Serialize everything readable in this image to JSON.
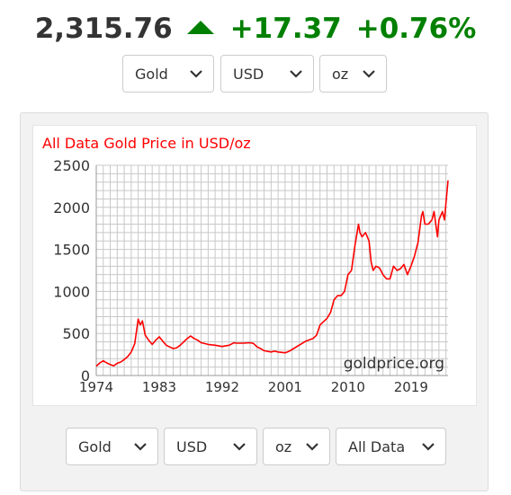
{
  "ticker": {
    "price": "2,315.76",
    "change": "+17.37",
    "change_pct": "+0.76%",
    "direction_icon": "triangle-up-icon",
    "up_color": "#008000"
  },
  "top_selects": {
    "metal": "Gold",
    "currency": "USD",
    "unit": "oz"
  },
  "bottom_selects": {
    "metal": "Gold",
    "currency": "USD",
    "unit": "oz",
    "range": "All Data"
  },
  "chart_data": {
    "type": "line",
    "title": "All Data Gold Price in USD/oz",
    "watermark": "goldprice.org",
    "xlabel": "",
    "ylabel": "",
    "xlim": [
      1974,
      2024.3
    ],
    "ylim": [
      0,
      2500
    ],
    "xticks": [
      1974,
      1983,
      1992,
      2001,
      2010,
      2019
    ],
    "xtick_labels": [
      "1974",
      "1983",
      "1992",
      "2001",
      "2010",
      "2019"
    ],
    "yticks": [
      0,
      500,
      1000,
      1500,
      2000,
      2500
    ],
    "ytick_labels": [
      "0",
      "500",
      "1000",
      "1500",
      "2000",
      "2500"
    ],
    "grid": true,
    "line_color": "#ff0000",
    "series": [
      {
        "name": "",
        "x": [
          1974,
          1974.5,
          1975,
          1975.5,
          1976,
          1976.5,
          1977,
          1977.5,
          1978,
          1978.5,
          1979,
          1979.5,
          1980,
          1980.3,
          1980.6,
          1981,
          1981.5,
          1982,
          1982.5,
          1983,
          1983.5,
          1984,
          1984.5,
          1985,
          1985.5,
          1986,
          1986.5,
          1987,
          1987.5,
          1988,
          1988.5,
          1989,
          1989.5,
          1990,
          1991,
          1992,
          1993,
          1993.7,
          1994,
          1995,
          1996,
          1996.5,
          1997,
          1997.5,
          1998,
          1999,
          1999.5,
          2000,
          2001,
          2001.5,
          2002,
          2003,
          2004,
          2005,
          2005.5,
          2006,
          2006.5,
          2007,
          2007.5,
          2008,
          2008.5,
          2009,
          2009.5,
          2010,
          2010.5,
          2011,
          2011.5,
          2011.7,
          2012,
          2012.5,
          2013,
          2013.3,
          2013.6,
          2014,
          2014.5,
          2015,
          2015.5,
          2016,
          2016.5,
          2017,
          2017.5,
          2018,
          2018.5,
          2019,
          2019.5,
          2020,
          2020.5,
          2020.7,
          2021,
          2021.5,
          2022,
          2022.3,
          2022.8,
          2023,
          2023.5,
          2023.8,
          2024,
          2024.3
        ],
        "y": [
          110,
          150,
          175,
          150,
          130,
          115,
          145,
          160,
          190,
          225,
          280,
          380,
          670,
          600,
          650,
          480,
          420,
          370,
          420,
          460,
          410,
          360,
          340,
          320,
          330,
          360,
          400,
          440,
          470,
          440,
          420,
          390,
          380,
          370,
          360,
          345,
          360,
          390,
          385,
          385,
          390,
          380,
          340,
          320,
          295,
          280,
          290,
          280,
          270,
          285,
          310,
          360,
          410,
          440,
          480,
          600,
          640,
          680,
          750,
          900,
          950,
          950,
          1000,
          1200,
          1250,
          1550,
          1800,
          1700,
          1650,
          1700,
          1600,
          1350,
          1250,
          1300,
          1280,
          1200,
          1150,
          1150,
          1300,
          1250,
          1270,
          1320,
          1200,
          1300,
          1420,
          1580,
          1900,
          1950,
          1800,
          1800,
          1850,
          1950,
          1650,
          1850,
          1950,
          1850,
          2050,
          2320
        ]
      }
    ]
  }
}
